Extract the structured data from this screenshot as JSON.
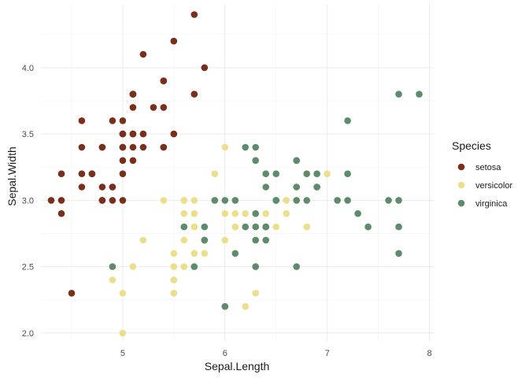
{
  "chart_data": {
    "type": "scatter",
    "xlabel": "Sepal.Length",
    "ylabel": "Sepal.Width",
    "xlim": [
      4.2,
      8.05
    ],
    "ylim": [
      1.94,
      4.48
    ],
    "x_ticks": [
      5,
      6,
      7,
      8
    ],
    "y_ticks": [
      2.0,
      2.5,
      3.0,
      3.5,
      4.0
    ],
    "x_tick_labels": [
      "5",
      "6",
      "7",
      "8"
    ],
    "y_tick_labels": [
      "2.0",
      "2.5",
      "3.0",
      "3.5",
      "4.0"
    ],
    "grid": true,
    "legend": {
      "title": "Species",
      "position": "right"
    },
    "series": [
      {
        "name": "setosa",
        "color": "#7a2e1c",
        "points": [
          [
            5.1,
            3.5
          ],
          [
            4.9,
            3.0
          ],
          [
            4.7,
            3.2
          ],
          [
            4.6,
            3.1
          ],
          [
            5.0,
            3.6
          ],
          [
            5.4,
            3.9
          ],
          [
            4.6,
            3.4
          ],
          [
            5.0,
            3.4
          ],
          [
            4.4,
            2.9
          ],
          [
            4.9,
            3.1
          ],
          [
            5.4,
            3.7
          ],
          [
            4.8,
            3.4
          ],
          [
            4.8,
            3.0
          ],
          [
            4.3,
            3.0
          ],
          [
            5.8,
            4.0
          ],
          [
            5.7,
            4.4
          ],
          [
            5.4,
            3.9
          ],
          [
            5.1,
            3.5
          ],
          [
            5.7,
            3.8
          ],
          [
            5.1,
            3.8
          ],
          [
            5.4,
            3.4
          ],
          [
            5.1,
            3.7
          ],
          [
            4.6,
            3.6
          ],
          [
            5.1,
            3.3
          ],
          [
            4.8,
            3.4
          ],
          [
            5.0,
            3.0
          ],
          [
            5.0,
            3.4
          ],
          [
            5.2,
            3.5
          ],
          [
            5.2,
            3.4
          ],
          [
            4.7,
            3.2
          ],
          [
            4.8,
            3.1
          ],
          [
            5.4,
            3.4
          ],
          [
            5.2,
            4.1
          ],
          [
            5.5,
            4.2
          ],
          [
            4.9,
            3.1
          ],
          [
            5.0,
            3.2
          ],
          [
            5.5,
            3.5
          ],
          [
            4.9,
            3.6
          ],
          [
            4.4,
            3.0
          ],
          [
            5.1,
            3.4
          ],
          [
            5.0,
            3.5
          ],
          [
            4.5,
            2.3
          ],
          [
            4.4,
            3.2
          ],
          [
            5.0,
            3.5
          ],
          [
            5.1,
            3.8
          ],
          [
            4.8,
            3.0
          ],
          [
            5.1,
            3.8
          ],
          [
            4.6,
            3.2
          ],
          [
            5.3,
            3.7
          ],
          [
            5.0,
            3.3
          ]
        ]
      },
      {
        "name": "versicolor",
        "color": "#ecdf8c",
        "points": [
          [
            7.0,
            3.2
          ],
          [
            6.4,
            3.2
          ],
          [
            6.9,
            3.1
          ],
          [
            5.5,
            2.3
          ],
          [
            6.5,
            2.8
          ],
          [
            5.7,
            2.8
          ],
          [
            6.3,
            3.3
          ],
          [
            4.9,
            2.4
          ],
          [
            6.6,
            2.9
          ],
          [
            5.2,
            2.7
          ],
          [
            5.0,
            2.0
          ],
          [
            5.9,
            3.0
          ],
          [
            6.0,
            2.2
          ],
          [
            6.1,
            2.9
          ],
          [
            5.6,
            2.9
          ],
          [
            6.7,
            3.1
          ],
          [
            5.6,
            3.0
          ],
          [
            5.8,
            2.7
          ],
          [
            6.2,
            2.2
          ],
          [
            5.6,
            2.5
          ],
          [
            5.9,
            3.2
          ],
          [
            6.1,
            2.8
          ],
          [
            6.3,
            2.5
          ],
          [
            6.1,
            2.8
          ],
          [
            6.4,
            2.9
          ],
          [
            6.6,
            3.0
          ],
          [
            6.8,
            2.8
          ],
          [
            6.7,
            3.0
          ],
          [
            6.0,
            2.9
          ],
          [
            5.7,
            2.6
          ],
          [
            5.5,
            2.4
          ],
          [
            5.5,
            2.4
          ],
          [
            5.8,
            2.7
          ],
          [
            6.0,
            2.7
          ],
          [
            5.4,
            3.0
          ],
          [
            6.0,
            3.4
          ],
          [
            6.7,
            3.1
          ],
          [
            6.3,
            2.3
          ],
          [
            5.6,
            3.0
          ],
          [
            5.5,
            2.5
          ],
          [
            5.5,
            2.6
          ],
          [
            6.1,
            3.0
          ],
          [
            5.8,
            2.6
          ],
          [
            5.0,
            2.3
          ],
          [
            5.6,
            2.7
          ],
          [
            5.7,
            3.0
          ],
          [
            5.7,
            2.9
          ],
          [
            6.2,
            2.9
          ],
          [
            5.1,
            2.5
          ],
          [
            5.7,
            2.8
          ]
        ]
      },
      {
        "name": "virginica",
        "color": "#5f8b6d",
        "points": [
          [
            6.3,
            3.3
          ],
          [
            5.8,
            2.7
          ],
          [
            7.1,
            3.0
          ],
          [
            6.3,
            2.9
          ],
          [
            6.5,
            3.0
          ],
          [
            7.6,
            3.0
          ],
          [
            4.9,
            2.5
          ],
          [
            7.3,
            2.9
          ],
          [
            6.7,
            2.5
          ],
          [
            7.2,
            3.6
          ],
          [
            6.5,
            3.2
          ],
          [
            6.4,
            2.7
          ],
          [
            6.8,
            3.0
          ],
          [
            5.7,
            2.5
          ],
          [
            5.8,
            2.8
          ],
          [
            6.4,
            3.2
          ],
          [
            6.5,
            3.0
          ],
          [
            7.7,
            3.8
          ],
          [
            7.7,
            2.6
          ],
          [
            6.0,
            2.2
          ],
          [
            6.9,
            3.2
          ],
          [
            5.6,
            2.8
          ],
          [
            7.7,
            2.8
          ],
          [
            6.3,
            2.7
          ],
          [
            6.7,
            3.3
          ],
          [
            7.2,
            3.2
          ],
          [
            6.2,
            2.8
          ],
          [
            6.1,
            3.0
          ],
          [
            6.4,
            2.8
          ],
          [
            7.2,
            3.0
          ],
          [
            7.4,
            2.8
          ],
          [
            7.9,
            3.8
          ],
          [
            6.4,
            2.8
          ],
          [
            6.3,
            2.8
          ],
          [
            6.1,
            2.6
          ],
          [
            7.7,
            3.0
          ],
          [
            6.3,
            3.4
          ],
          [
            6.4,
            3.1
          ],
          [
            6.0,
            3.0
          ],
          [
            6.9,
            3.1
          ],
          [
            6.7,
            3.1
          ],
          [
            6.9,
            3.1
          ],
          [
            5.8,
            2.7
          ],
          [
            6.8,
            3.2
          ],
          [
            6.7,
            3.3
          ],
          [
            6.7,
            3.0
          ],
          [
            6.3,
            2.5
          ],
          [
            6.5,
            3.0
          ],
          [
            6.2,
            3.4
          ],
          [
            5.9,
            3.0
          ]
        ]
      }
    ]
  }
}
